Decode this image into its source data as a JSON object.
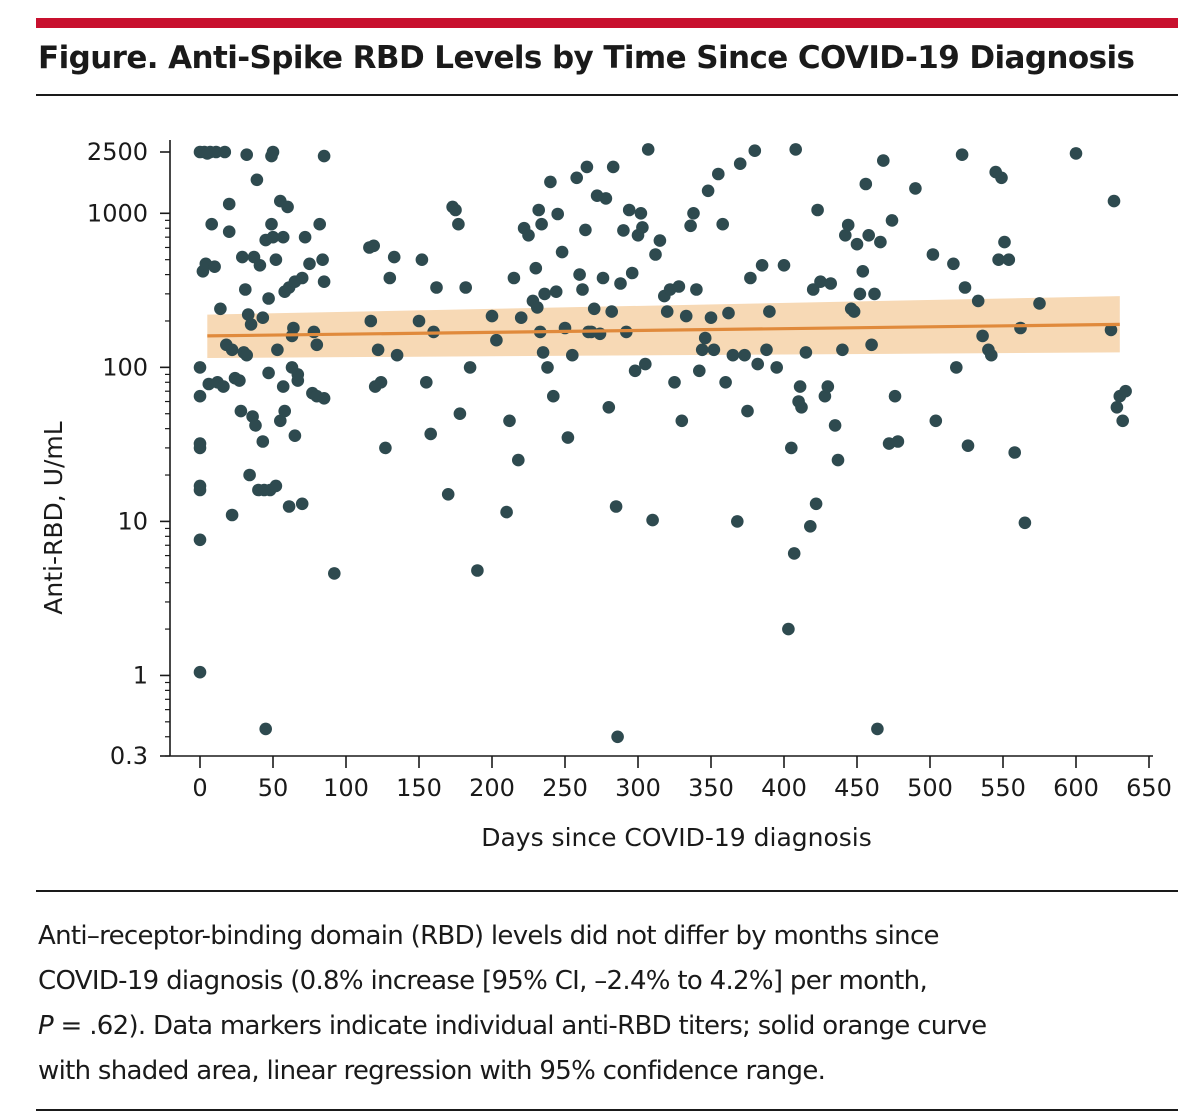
{
  "figure": {
    "title": "Figure. Anti-Spike RBD Levels by Time Since COVID-19 Diagnosis",
    "caption": {
      "line1": "Anti–receptor-binding domain (RBD) levels did not differ by months since",
      "line2": "COVID-19 diagnosis (0.8% increase [95% CI, –2.4% to 4.2%] per month,",
      "line3_italic": "P",
      "line3_rest": " = .62). Data markers indicate individual anti-RBD titers; solid orange curve",
      "line4": "with shaded area, linear regression with 95% confidence range."
    }
  },
  "colors": {
    "point": "#2e4a4f",
    "regression_line": "#e08a3c",
    "confidence_band": "#f7d9b5",
    "title_bar": "#c8102e",
    "axis": "#1a1a1a"
  },
  "chart_data": {
    "type": "scatter",
    "xlabel": "Days since COVID-19 diagnosis",
    "ylabel": "Anti-RBD, U/mL",
    "xlim": [
      -10,
      650
    ],
    "ylim": [
      0.3,
      2500
    ],
    "y_scale": "log",
    "x_ticks": [
      0,
      50,
      100,
      150,
      200,
      250,
      300,
      350,
      400,
      450,
      500,
      550,
      600,
      650
    ],
    "x_tick_labels": [
      "0",
      "50",
      "100",
      "150",
      "200",
      "250",
      "300",
      "350",
      "400",
      "450",
      "500",
      "550",
      "600",
      "650"
    ],
    "y_ticks": [
      0.3,
      1,
      10,
      100,
      1000,
      2500
    ],
    "y_tick_labels": [
      "0.3",
      "1",
      "10",
      "100",
      "1000",
      "2500"
    ],
    "grid": false,
    "regression": {
      "x": [
        5,
        630
      ],
      "y": [
        160,
        190
      ],
      "ci_lower": [
        115,
        125
      ],
      "ci_upper": [
        220,
        290
      ]
    },
    "points": [
      [
        0,
        2500
      ],
      [
        3,
        2500
      ],
      [
        5,
        2450
      ],
      [
        7,
        2500
      ],
      [
        11,
        2500
      ],
      [
        17,
        2500
      ],
      [
        32,
        2400
      ],
      [
        49,
        2350
      ],
      [
        50,
        2500
      ],
      [
        85,
        2350
      ],
      [
        2,
        420
      ],
      [
        4,
        470
      ],
      [
        6,
        78
      ],
      [
        8,
        850
      ],
      [
        10,
        450
      ],
      [
        12,
        80
      ],
      [
        14,
        240
      ],
      [
        16,
        75
      ],
      [
        18,
        140
      ],
      [
        20,
        1150
      ],
      [
        20,
        760
      ],
      [
        22,
        130
      ],
      [
        24,
        85
      ],
      [
        27,
        82
      ],
      [
        29,
        520
      ],
      [
        31,
        320
      ],
      [
        33,
        220
      ],
      [
        35,
        190
      ],
      [
        37,
        520
      ],
      [
        39,
        1650
      ],
      [
        41,
        460
      ],
      [
        43,
        210
      ],
      [
        45,
        670
      ],
      [
        47,
        280
      ],
      [
        49,
        850
      ],
      [
        50,
        700
      ],
      [
        52,
        500
      ],
      [
        53,
        130
      ],
      [
        55,
        1200
      ],
      [
        57,
        700
      ],
      [
        58,
        310
      ],
      [
        60,
        1100
      ],
      [
        61,
        330
      ],
      [
        63,
        160
      ],
      [
        64,
        180
      ],
      [
        65,
        360
      ],
      [
        67,
        90
      ],
      [
        70,
        380
      ],
      [
        72,
        700
      ],
      [
        75,
        470
      ],
      [
        78,
        170
      ],
      [
        80,
        140
      ],
      [
        82,
        850
      ],
      [
        84,
        500
      ],
      [
        85,
        360
      ],
      [
        0,
        65
      ],
      [
        0,
        100
      ],
      [
        0,
        30
      ],
      [
        0,
        32
      ],
      [
        0,
        17
      ],
      [
        0,
        16
      ],
      [
        0,
        7.6
      ],
      [
        0,
        1.05
      ],
      [
        22,
        11
      ],
      [
        28,
        52
      ],
      [
        30,
        125
      ],
      [
        32,
        120
      ],
      [
        34,
        20
      ],
      [
        36,
        48
      ],
      [
        38,
        42
      ],
      [
        40,
        16
      ],
      [
        43,
        33
      ],
      [
        44,
        16
      ],
      [
        45,
        0.45
      ],
      [
        47,
        92
      ],
      [
        48,
        16
      ],
      [
        52,
        17
      ],
      [
        55,
        45
      ],
      [
        57,
        75
      ],
      [
        58,
        52
      ],
      [
        61,
        12.5
      ],
      [
        63,
        100
      ],
      [
        65,
        36
      ],
      [
        67,
        82
      ],
      [
        70,
        13
      ],
      [
        77,
        68
      ],
      [
        80,
        65
      ],
      [
        85,
        63
      ],
      [
        92,
        4.6
      ],
      [
        116,
        600
      ],
      [
        117,
        200
      ],
      [
        119,
        615
      ],
      [
        120,
        75
      ],
      [
        122,
        130
      ],
      [
        124,
        80
      ],
      [
        127,
        30
      ],
      [
        130,
        380
      ],
      [
        133,
        520
      ],
      [
        135,
        120
      ],
      [
        150,
        200
      ],
      [
        152,
        500
      ],
      [
        155,
        80
      ],
      [
        158,
        37
      ],
      [
        160,
        170
      ],
      [
        162,
        330
      ],
      [
        170,
        15
      ],
      [
        173,
        1100
      ],
      [
        175,
        1050
      ],
      [
        177,
        850
      ],
      [
        178,
        50
      ],
      [
        182,
        330
      ],
      [
        185,
        100
      ],
      [
        190,
        4.8
      ],
      [
        200,
        215
      ],
      [
        203,
        150
      ],
      [
        210,
        11.5
      ],
      [
        212,
        45
      ],
      [
        215,
        380
      ],
      [
        218,
        25
      ],
      [
        220,
        210
      ],
      [
        222,
        800
      ],
      [
        225,
        720
      ],
      [
        228,
        270
      ],
      [
        230,
        440
      ],
      [
        231,
        245
      ],
      [
        232,
        1050
      ],
      [
        233,
        170
      ],
      [
        234,
        850
      ],
      [
        235,
        125
      ],
      [
        236,
        300
      ],
      [
        238,
        100
      ],
      [
        240,
        1600
      ],
      [
        242,
        65
      ],
      [
        244,
        310
      ],
      [
        245,
        990
      ],
      [
        248,
        560
      ],
      [
        250,
        180
      ],
      [
        252,
        35
      ],
      [
        255,
        120
      ],
      [
        258,
        1700
      ],
      [
        260,
        400
      ],
      [
        262,
        320
      ],
      [
        264,
        780
      ],
      [
        265,
        2000
      ],
      [
        266,
        170
      ],
      [
        268,
        170
      ],
      [
        270,
        240
      ],
      [
        272,
        1300
      ],
      [
        274,
        165
      ],
      [
        276,
        380
      ],
      [
        278,
        1250
      ],
      [
        280,
        55
      ],
      [
        282,
        230
      ],
      [
        283,
        2000
      ],
      [
        285,
        12.5
      ],
      [
        286,
        0.4
      ],
      [
        288,
        350
      ],
      [
        290,
        775
      ],
      [
        292,
        170
      ],
      [
        294,
        1050
      ],
      [
        296,
        410
      ],
      [
        298,
        95
      ],
      [
        300,
        720
      ],
      [
        302,
        1000
      ],
      [
        303,
        810
      ],
      [
        305,
        105
      ],
      [
        307,
        2600
      ],
      [
        310,
        10.2
      ],
      [
        312,
        540
      ],
      [
        315,
        665
      ],
      [
        318,
        290
      ],
      [
        320,
        230
      ],
      [
        322,
        320
      ],
      [
        325,
        80
      ],
      [
        328,
        335
      ],
      [
        330,
        45
      ],
      [
        333,
        215
      ],
      [
        336,
        830
      ],
      [
        338,
        1000
      ],
      [
        340,
        320
      ],
      [
        342,
        95
      ],
      [
        344,
        130
      ],
      [
        346,
        155
      ],
      [
        348,
        1400
      ],
      [
        350,
        210
      ],
      [
        352,
        130
      ],
      [
        355,
        1800
      ],
      [
        358,
        850
      ],
      [
        360,
        80
      ],
      [
        362,
        225
      ],
      [
        365,
        120
      ],
      [
        368,
        10
      ],
      [
        370,
        2100
      ],
      [
        373,
        120
      ],
      [
        375,
        52
      ],
      [
        377,
        380
      ],
      [
        380,
        2550
      ],
      [
        382,
        105
      ],
      [
        385,
        460
      ],
      [
        388,
        130
      ],
      [
        390,
        230
      ],
      [
        395,
        100
      ],
      [
        400,
        460
      ],
      [
        403,
        2
      ],
      [
        405,
        30
      ],
      [
        407,
        6.2
      ],
      [
        408,
        2600
      ],
      [
        410,
        60
      ],
      [
        411,
        75
      ],
      [
        412,
        55
      ],
      [
        415,
        125
      ],
      [
        418,
        9.3
      ],
      [
        420,
        320
      ],
      [
        422,
        13
      ],
      [
        423,
        1050
      ],
      [
        425,
        360
      ],
      [
        428,
        65
      ],
      [
        430,
        75
      ],
      [
        432,
        350
      ],
      [
        435,
        42
      ],
      [
        437,
        25
      ],
      [
        440,
        130
      ],
      [
        442,
        720
      ],
      [
        444,
        840
      ],
      [
        446,
        240
      ],
      [
        448,
        230
      ],
      [
        450,
        630
      ],
      [
        452,
        300
      ],
      [
        454,
        420
      ],
      [
        456,
        1550
      ],
      [
        458,
        720
      ],
      [
        460,
        140
      ],
      [
        462,
        300
      ],
      [
        464,
        0.45
      ],
      [
        466,
        650
      ],
      [
        468,
        2200
      ],
      [
        472,
        32
      ],
      [
        474,
        900
      ],
      [
        476,
        65
      ],
      [
        478,
        33
      ],
      [
        490,
        1450
      ],
      [
        502,
        540
      ],
      [
        504,
        45
      ],
      [
        516,
        470
      ],
      [
        518,
        100
      ],
      [
        522,
        2400
      ],
      [
        524,
        330
      ],
      [
        526,
        31
      ],
      [
        533,
        270
      ],
      [
        536,
        160
      ],
      [
        540,
        130
      ],
      [
        542,
        120
      ],
      [
        545,
        1850
      ],
      [
        547,
        500
      ],
      [
        549,
        1700
      ],
      [
        551,
        650
      ],
      [
        554,
        500
      ],
      [
        558,
        28
      ],
      [
        562,
        180
      ],
      [
        565,
        9.8
      ],
      [
        575,
        260
      ],
      [
        600,
        2450
      ],
      [
        624,
        175
      ],
      [
        626,
        1200
      ],
      [
        628,
        55
      ],
      [
        630,
        65
      ],
      [
        632,
        45
      ],
      [
        634,
        70
      ]
    ]
  }
}
